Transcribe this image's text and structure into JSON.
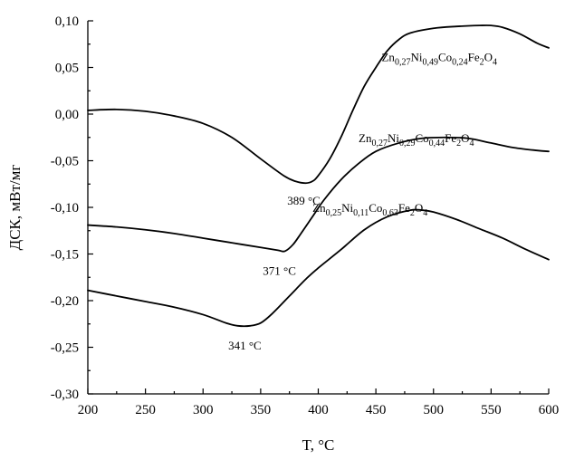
{
  "chart_data": {
    "type": "line",
    "xlabel": "T, °C",
    "ylabel": "ДСК, мВт/мг",
    "xlim": [
      200,
      600
    ],
    "ylim": [
      -0.3,
      0.1
    ],
    "xticks": [
      200,
      250,
      300,
      350,
      400,
      450,
      500,
      550,
      600
    ],
    "yticks": [
      0.1,
      0.05,
      0.0,
      -0.05,
      -0.1,
      -0.15,
      -0.2,
      -0.25,
      -0.3
    ],
    "xtick_labels": [
      "200",
      "250",
      "300",
      "350",
      "400",
      "450",
      "500",
      "550",
      "600"
    ],
    "ytick_labels": [
      "0,10",
      "0,05",
      "0,00",
      "-0,05",
      "-0,10",
      "-0,15",
      "-0,20",
      "-0,25",
      "-0,30"
    ],
    "grid": false,
    "series": [
      {
        "name": "Zn0,27Ni0,49Co0,24Fe2O4",
        "label_parts": {
          "zn": "0,27",
          "ni": "0,49",
          "co": "0,24",
          "fe": "2",
          "o": "4"
        },
        "x": [
          200,
          225,
          250,
          275,
          300,
          325,
          350,
          370,
          380,
          389,
          395,
          400,
          410,
          420,
          430,
          440,
          450,
          460,
          470,
          480,
          500,
          520,
          540,
          550,
          560,
          575,
          590,
          600
        ],
        "y": [
          0.004,
          0.005,
          0.003,
          -0.002,
          -0.01,
          -0.025,
          -0.048,
          -0.066,
          -0.072,
          -0.074,
          -0.072,
          -0.066,
          -0.048,
          -0.024,
          0.004,
          0.03,
          0.05,
          0.068,
          0.08,
          0.087,
          0.092,
          0.094,
          0.095,
          0.095,
          0.093,
          0.086,
          0.076,
          0.071
        ]
      },
      {
        "name": "Zn0,27Ni0,29Co0,44Fe2O4",
        "label_parts": {
          "zn": "0,27",
          "ni": "0,29",
          "co": "0,44",
          "fe": "2",
          "o": "4"
        },
        "x": [
          200,
          225,
          250,
          275,
          300,
          325,
          350,
          365,
          371,
          378,
          385,
          395,
          405,
          420,
          435,
          450,
          470,
          490,
          510,
          530,
          550,
          570,
          590,
          600
        ],
        "y": [
          -0.119,
          -0.121,
          -0.124,
          -0.128,
          -0.133,
          -0.138,
          -0.143,
          -0.146,
          -0.147,
          -0.14,
          -0.128,
          -0.11,
          -0.092,
          -0.07,
          -0.053,
          -0.04,
          -0.031,
          -0.026,
          -0.025,
          -0.026,
          -0.031,
          -0.036,
          -0.039,
          -0.04
        ]
      },
      {
        "name": "Zn0,25Ni0,11Co0,63Fe2O4",
        "label_parts": {
          "zn": "0,25",
          "ni": "0,11",
          "co": "0,63",
          "fe": "2",
          "o": "4"
        },
        "x": [
          200,
          225,
          250,
          275,
          300,
          320,
          330,
          341,
          350,
          360,
          375,
          390,
          400,
          420,
          440,
          460,
          480,
          490,
          500,
          520,
          540,
          560,
          580,
          600
        ],
        "y": [
          -0.189,
          -0.195,
          -0.201,
          -0.207,
          -0.215,
          -0.224,
          -0.227,
          -0.227,
          -0.224,
          -0.214,
          -0.195,
          -0.176,
          -0.165,
          -0.145,
          -0.124,
          -0.11,
          -0.103,
          -0.103,
          -0.105,
          -0.113,
          -0.123,
          -0.133,
          -0.145,
          -0.156
        ]
      }
    ],
    "annotations": [
      {
        "text": "389 °C",
        "x": 389,
        "y": -0.074
      },
      {
        "text": "371 °C",
        "x": 371,
        "y": -0.147
      },
      {
        "text": "341 °C",
        "x": 341,
        "y": -0.227
      }
    ]
  }
}
